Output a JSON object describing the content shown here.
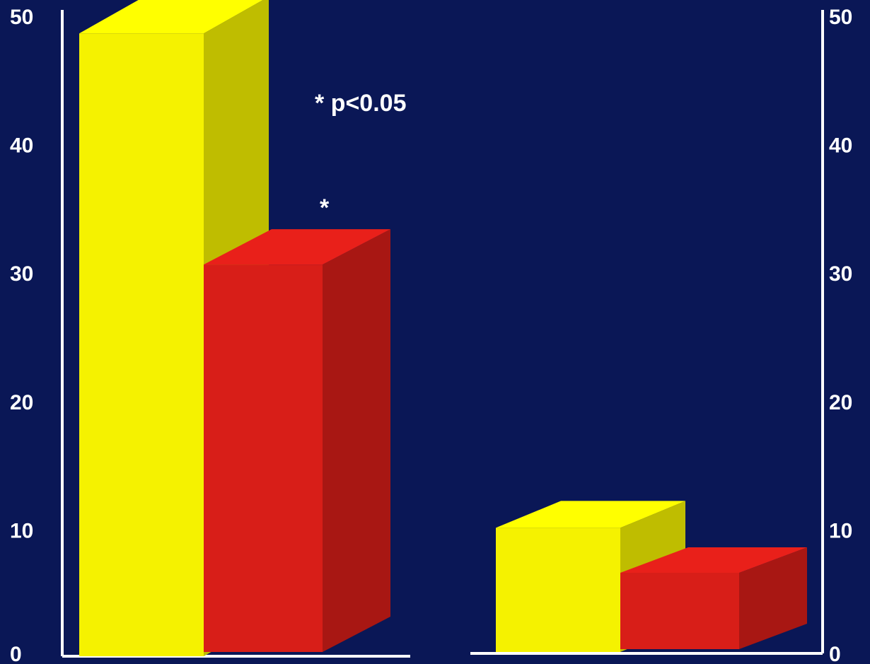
{
  "chart_data": {
    "type": "bar",
    "style": "3d",
    "groups": [
      {
        "axis_side": "left",
        "ylim": [
          0,
          50
        ],
        "tick_labels": [
          "0",
          "10",
          "20",
          "30",
          "40",
          "50"
        ],
        "bars": [
          {
            "value": 48.5,
            "color": "#f5f200"
          },
          {
            "value": 30.5,
            "color": "#d81e18",
            "significance": "*"
          }
        ]
      },
      {
        "axis_side": "right",
        "ylim": [
          0,
          50
        ],
        "tick_labels": [
          "0",
          "10",
          "20",
          "30",
          "40",
          "50"
        ],
        "bars": [
          {
            "value": 10,
            "color": "#f5f200"
          },
          {
            "value": 6.5,
            "color": "#d81e18"
          }
        ]
      }
    ],
    "annotations": [
      {
        "text": "* p<0.05"
      }
    ],
    "grid": false,
    "legend": "none"
  }
}
